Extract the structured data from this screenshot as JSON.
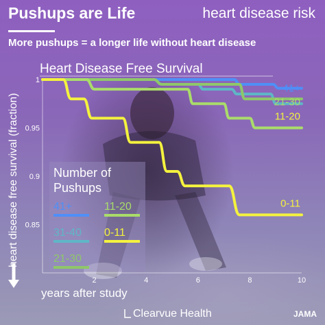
{
  "header": {
    "title": "Pushups are Life",
    "tagline": "heart disease risk",
    "subtitle": "More pushups = a longer life without heart disease"
  },
  "footer": {
    "brand": "Clearvue Health",
    "source": "JAMA"
  },
  "chart_data": {
    "type": "line",
    "title": "Heart Disease Free Survival",
    "xlabel": "years after study",
    "ylabel": "heart disease free survival (fraction)",
    "xlim": [
      0,
      10
    ],
    "ylim": [
      0.8,
      1.0
    ],
    "x_ticks": [
      "2",
      "4",
      "6",
      "8",
      "10"
    ],
    "y_ticks": [
      "1",
      "0.95",
      "0.9",
      "0.85"
    ],
    "legend": {
      "title_line1": "Number of",
      "title_line2": "Pushups",
      "position": "left-middle"
    },
    "series": [
      {
        "name": "41+",
        "color": "#4f8ff7",
        "points": [
          [
            0,
            1.0
          ],
          [
            7.4,
            1.0
          ],
          [
            7.6,
            0.995
          ],
          [
            8.9,
            0.995
          ],
          [
            9.1,
            0.991
          ],
          [
            10,
            0.991
          ]
        ]
      },
      {
        "name": "31-40",
        "color": "#5fb6c6",
        "points": [
          [
            0,
            1.0
          ],
          [
            4.3,
            1.0
          ],
          [
            4.6,
            0.995
          ],
          [
            6.0,
            0.995
          ],
          [
            6.2,
            0.99
          ],
          [
            7.3,
            0.99
          ],
          [
            7.5,
            0.985
          ],
          [
            8.8,
            0.985
          ],
          [
            9.0,
            0.975
          ],
          [
            10,
            0.975
          ]
        ]
      },
      {
        "name": "21-30",
        "color": "#8fc769",
        "points": [
          [
            0,
            1.0
          ],
          [
            4.3,
            1.0
          ],
          [
            4.6,
            0.995
          ],
          [
            7.6,
            0.995
          ],
          [
            7.8,
            0.98
          ],
          [
            10,
            0.98
          ]
        ]
      },
      {
        "name": "11-20",
        "color": "#aadc6a",
        "points": [
          [
            0,
            1.0
          ],
          [
            1.7,
            1.0
          ],
          [
            2.0,
            0.99
          ],
          [
            5.6,
            0.99
          ],
          [
            5.8,
            0.975
          ],
          [
            7.0,
            0.975
          ],
          [
            7.2,
            0.96
          ],
          [
            8.0,
            0.96
          ],
          [
            8.2,
            0.95
          ],
          [
            10,
            0.95
          ]
        ]
      },
      {
        "name": "0-11",
        "color": "#f4f23e",
        "points": [
          [
            0,
            1.0
          ],
          [
            0.8,
            1.0
          ],
          [
            1.1,
            0.98
          ],
          [
            1.6,
            0.98
          ],
          [
            1.9,
            0.96
          ],
          [
            3.1,
            0.96
          ],
          [
            3.4,
            0.935
          ],
          [
            4.5,
            0.935
          ],
          [
            4.8,
            0.905
          ],
          [
            5.2,
            0.905
          ],
          [
            5.5,
            0.89
          ],
          [
            7.2,
            0.89
          ],
          [
            7.6,
            0.86
          ],
          [
            10,
            0.86
          ]
        ]
      }
    ],
    "end_labels": [
      {
        "text": "41+",
        "y": 0.991,
        "color": "#4f8ff7"
      },
      {
        "text": "21-30",
        "y": 0.977,
        "color": "#aadc6a"
      },
      {
        "text": "11-20",
        "y": 0.962,
        "color": "#f4f23e"
      },
      {
        "text": "0-11",
        "y": 0.872,
        "color": "#f4f23e"
      }
    ],
    "legend_items": [
      {
        "text": "41+",
        "color": "#4f8ff7"
      },
      {
        "text": "11-20",
        "color": "#aadc6a"
      },
      {
        "text": "31-40",
        "color": "#5fb6c6"
      },
      {
        "text": "0-11",
        "color": "#f4f23e"
      },
      {
        "text": "21-30",
        "color": "#8fc769"
      }
    ]
  }
}
